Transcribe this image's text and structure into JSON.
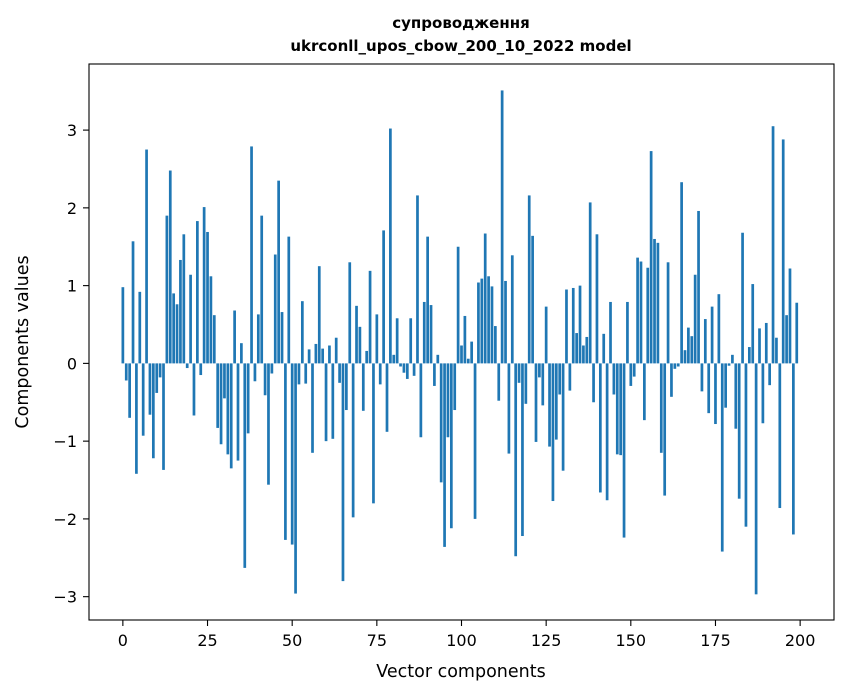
{
  "chart_data": {
    "type": "bar",
    "title_line1": "супроводження",
    "title_line2": "ukrconll_upos_cbow_200_10_2022 model",
    "xlabel": "Vector components",
    "ylabel": "Components values",
    "xlim": [
      -10,
      210
    ],
    "ylim": [
      -3.3,
      3.85
    ],
    "xticks": [
      0,
      25,
      50,
      75,
      100,
      125,
      150,
      175,
      200
    ],
    "yticks": [
      -3,
      -2,
      -1,
      0,
      1,
      2,
      3
    ],
    "ytick_labels": [
      "−3",
      "−2",
      "−1",
      "0",
      "1",
      "2",
      "3"
    ],
    "grid": false,
    "bar_color": "#1f77b4",
    "values": [
      0.98,
      -0.22,
      -0.7,
      1.57,
      -1.42,
      0.92,
      -0.93,
      2.75,
      -0.66,
      -1.22,
      -0.38,
      -0.18,
      -1.37,
      1.9,
      2.48,
      0.9,
      0.76,
      1.33,
      1.66,
      -0.06,
      1.14,
      -0.67,
      1.83,
      -0.15,
      2.01,
      1.69,
      1.12,
      0.62,
      -0.83,
      -1.04,
      -0.45,
      -1.17,
      -1.35,
      0.68,
      -1.25,
      0.26,
      -2.63,
      -0.9,
      2.79,
      -0.23,
      0.63,
      1.9,
      -0.41,
      -1.56,
      -0.13,
      1.4,
      2.35,
      0.66,
      -2.27,
      1.63,
      -2.33,
      -2.96,
      -0.27,
      0.8,
      -0.26,
      0.18,
      -1.15,
      0.25,
      1.25,
      0.19,
      -1.0,
      0.23,
      -0.97,
      0.33,
      -0.25,
      -2.8,
      -0.6,
      1.3,
      -1.98,
      0.74,
      0.47,
      -0.61,
      0.16,
      1.19,
      -1.8,
      0.63,
      -0.27,
      1.71,
      -0.88,
      3.02,
      0.11,
      0.58,
      -0.04,
      -0.12,
      -0.2,
      0.58,
      -0.16,
      2.16,
      -0.95,
      0.79,
      1.63,
      0.75,
      -0.29,
      0.11,
      -1.53,
      -2.36,
      -0.95,
      -2.12,
      -0.6,
      1.5,
      0.23,
      0.61,
      0.06,
      0.28,
      -2.0,
      1.04,
      1.09,
      1.67,
      1.12,
      0.99,
      0.48,
      -0.48,
      3.51,
      1.06,
      -1.16,
      1.39,
      -2.48,
      -0.25,
      -2.22,
      -0.52,
      2.16,
      1.64,
      -1.01,
      -0.18,
      -0.54,
      0.73,
      -1.07,
      -1.77,
      -0.98,
      -0.4,
      -1.38,
      0.95,
      -0.35,
      0.97,
      0.39,
      1.0,
      0.23,
      0.34,
      2.07,
      -0.5,
      1.66,
      -1.66,
      0.38,
      -1.76,
      0.79,
      -0.4,
      -1.17,
      -1.18,
      -2.24,
      0.79,
      -0.29,
      -0.17,
      1.36,
      1.31,
      -0.73,
      1.23,
      2.73,
      1.6,
      1.55,
      -1.15,
      -1.7,
      1.3,
      -0.43,
      -0.07,
      -0.04,
      2.33,
      0.17,
      0.46,
      0.35,
      1.14,
      1.96,
      -0.36,
      0.57,
      -0.64,
      0.73,
      -0.78,
      0.89,
      -2.42,
      -0.57,
      -0.03,
      0.11,
      -0.84,
      -1.74,
      1.68,
      -2.1,
      0.21,
      1.02,
      -2.97,
      0.45,
      -0.77,
      0.52,
      -0.28,
      3.05,
      0.33,
      -1.86,
      2.88,
      0.62,
      1.22,
      -2.2,
      0.78
    ]
  }
}
